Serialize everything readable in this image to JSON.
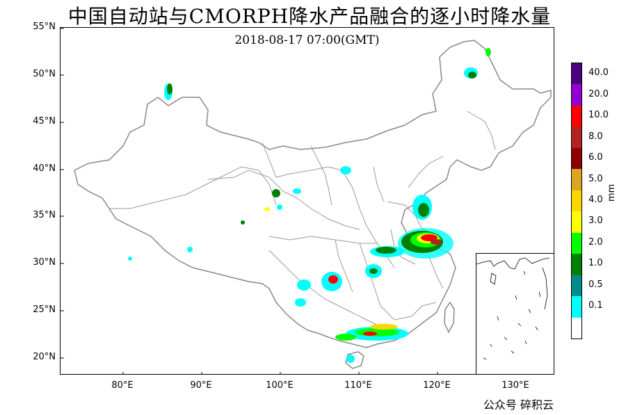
{
  "title": "中国自动站与CMORPH降水产品融合的逐小时降水量",
  "timestamp": "2018-08-17 07:00(GMT)",
  "watermark": "公众号 碎积云",
  "unit": "mm",
  "lat_labels": [
    "55°N",
    "50°N",
    "45°N",
    "40°N",
    "35°N",
    "30°N",
    "25°N",
    "20°N"
  ],
  "lon_labels": [
    "80°E",
    "90°E",
    "100°E",
    "110°E",
    "120°E",
    "130°E"
  ],
  "colorbar": {
    "levels": [
      "0.1",
      "0.5",
      "1.0",
      "2.0",
      "3.0",
      "4.0",
      "5.0",
      "6.0",
      "8.0",
      "10.0",
      "20.0",
      "40.0"
    ],
    "colors": [
      "#ffffff",
      "#00ffff",
      "#008b8b",
      "#008000",
      "#00ff00",
      "#ffff00",
      "#ffd700",
      "#daa520",
      "#8b0000",
      "#b22222",
      "#ff0000",
      "#9400d3",
      "#4b0082"
    ]
  }
}
